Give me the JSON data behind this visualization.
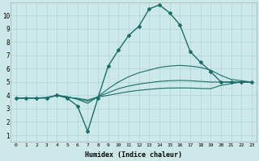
{
  "title": "",
  "xlabel": "Humidex (Indice chaleur)",
  "ylabel": "",
  "bg_color": "#cce8e8",
  "line_color": "#1a6e6a",
  "grid_color": "#b0d8d8",
  "xlim": [
    -0.5,
    23.5
  ],
  "ylim": [
    0.5,
    11.0
  ],
  "xticks": [
    0,
    1,
    2,
    3,
    4,
    5,
    6,
    7,
    8,
    9,
    10,
    11,
    12,
    13,
    14,
    15,
    16,
    17,
    18,
    19,
    20,
    21,
    22,
    23
  ],
  "yticks": [
    1,
    2,
    3,
    4,
    5,
    6,
    7,
    8,
    9,
    10
  ],
  "lines": [
    {
      "x": [
        0,
        1,
        2,
        3,
        4,
        5,
        6,
        7,
        8,
        9,
        10,
        11,
        12,
        13,
        14,
        15,
        16,
        17,
        18,
        19,
        20,
        21,
        22,
        23
      ],
      "y": [
        3.8,
        3.8,
        3.8,
        3.8,
        4.0,
        3.8,
        3.2,
        1.3,
        3.8,
        6.2,
        7.4,
        8.5,
        9.2,
        10.5,
        10.8,
        10.2,
        9.3,
        7.3,
        6.5,
        5.8,
        5.0,
        5.0,
        5.0,
        5.0
      ],
      "marker": "D",
      "markersize": 2.0,
      "linewidth": 1.0
    },
    {
      "x": [
        0,
        1,
        2,
        3,
        4,
        5,
        6,
        7,
        8,
        9,
        10,
        11,
        12,
        13,
        14,
        15,
        16,
        17,
        18,
        19,
        20,
        21,
        22,
        23
      ],
      "y": [
        3.8,
        3.8,
        3.8,
        3.85,
        4.0,
        3.9,
        3.7,
        3.4,
        3.9,
        4.5,
        5.0,
        5.4,
        5.7,
        5.9,
        6.1,
        6.2,
        6.25,
        6.2,
        6.1,
        5.9,
        5.5,
        5.2,
        5.1,
        5.0
      ],
      "marker": null,
      "markersize": 0,
      "linewidth": 0.8
    },
    {
      "x": [
        0,
        1,
        2,
        3,
        4,
        5,
        6,
        7,
        8,
        9,
        10,
        11,
        12,
        13,
        14,
        15,
        16,
        17,
        18,
        19,
        20,
        21,
        22,
        23
      ],
      "y": [
        3.8,
        3.8,
        3.8,
        3.82,
        4.0,
        3.88,
        3.75,
        3.55,
        3.9,
        4.2,
        4.5,
        4.7,
        4.85,
        4.95,
        5.05,
        5.1,
        5.12,
        5.1,
        5.05,
        5.0,
        5.0,
        5.0,
        5.0,
        5.0
      ],
      "marker": null,
      "markersize": 0,
      "linewidth": 0.8
    },
    {
      "x": [
        0,
        1,
        2,
        3,
        4,
        5,
        6,
        7,
        8,
        9,
        10,
        11,
        12,
        13,
        14,
        15,
        16,
        17,
        18,
        19,
        20,
        21,
        22,
        23
      ],
      "y": [
        3.8,
        3.8,
        3.8,
        3.81,
        4.0,
        3.85,
        3.78,
        3.65,
        3.88,
        4.0,
        4.15,
        4.28,
        4.38,
        4.45,
        4.52,
        4.55,
        4.56,
        4.55,
        4.52,
        4.5,
        4.75,
        4.88,
        5.0,
        5.0
      ],
      "marker": null,
      "markersize": 0,
      "linewidth": 0.8
    }
  ]
}
